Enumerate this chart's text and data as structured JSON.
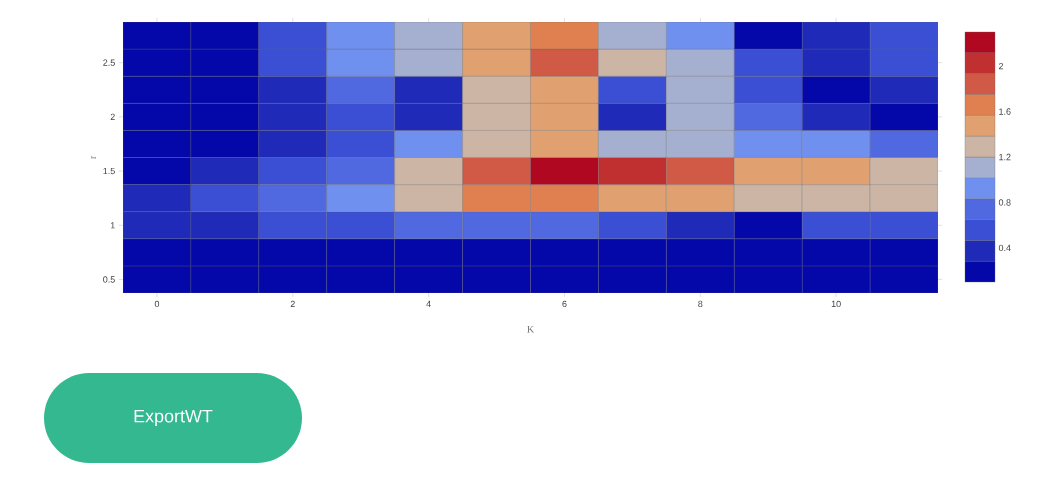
{
  "chart_data": {
    "type": "heatmap",
    "xlabel": "K",
    "ylabel": "r",
    "categories": [
      "0",
      null,
      "2",
      null,
      "4",
      null,
      "6",
      null,
      "8",
      null,
      "10",
      null
    ],
    "y_categories": [
      null,
      "2.5",
      null,
      "2",
      null,
      "1.5",
      null,
      "1",
      null,
      "0.5"
    ],
    "cells": [
      [
        0.1,
        0.2,
        0.5,
        0.9,
        1.1,
        1.5,
        1.7,
        1.1,
        0.9,
        0.2,
        0.3,
        0.5
      ],
      [
        0.1,
        0.25,
        0.5,
        0.85,
        1.1,
        1.5,
        1.75,
        1.2,
        1.1,
        0.5,
        0.3,
        0.5
      ],
      [
        0.1,
        0.2,
        0.4,
        0.7,
        0.4,
        1.3,
        1.5,
        0.55,
        1.1,
        0.5,
        0.25,
        0.3
      ],
      [
        0.1,
        0.1,
        0.3,
        0.5,
        0.35,
        1.2,
        1.4,
        0.35,
        1.1,
        0.7,
        0.4,
        0.2
      ],
      [
        0.1,
        0.25,
        0.4,
        0.6,
        0.85,
        1.3,
        1.45,
        1.1,
        1.15,
        1.0,
        0.9,
        0.7
      ],
      [
        0.2,
        0.35,
        0.55,
        0.8,
        1.3,
        1.9,
        2.25,
        2.05,
        1.75,
        1.55,
        1.4,
        1.3
      ],
      [
        0.3,
        0.5,
        0.7,
        1.0,
        1.35,
        1.6,
        1.65,
        1.55,
        1.45,
        1.35,
        1.3,
        1.3
      ],
      [
        0.3,
        0.4,
        0.5,
        0.6,
        0.7,
        0.75,
        0.8,
        0.6,
        0.35,
        0.25,
        0.5,
        0.6
      ],
      [
        0.15,
        0.15,
        0.15,
        0.15,
        0.15,
        0.15,
        0.15,
        0.15,
        0.15,
        0.15,
        0.15,
        0.15
      ],
      [
        0.1,
        0.1,
        0.1,
        0.1,
        0.1,
        0.1,
        0.1,
        0.1,
        0.1,
        0.1,
        0.1,
        0.1
      ]
    ],
    "clim": [
      0.1,
      2.3
    ],
    "cticks": [
      0.4,
      0.8,
      1.2,
      1.6,
      2
    ],
    "annotations": [
      "ExportWT"
    ]
  }
}
